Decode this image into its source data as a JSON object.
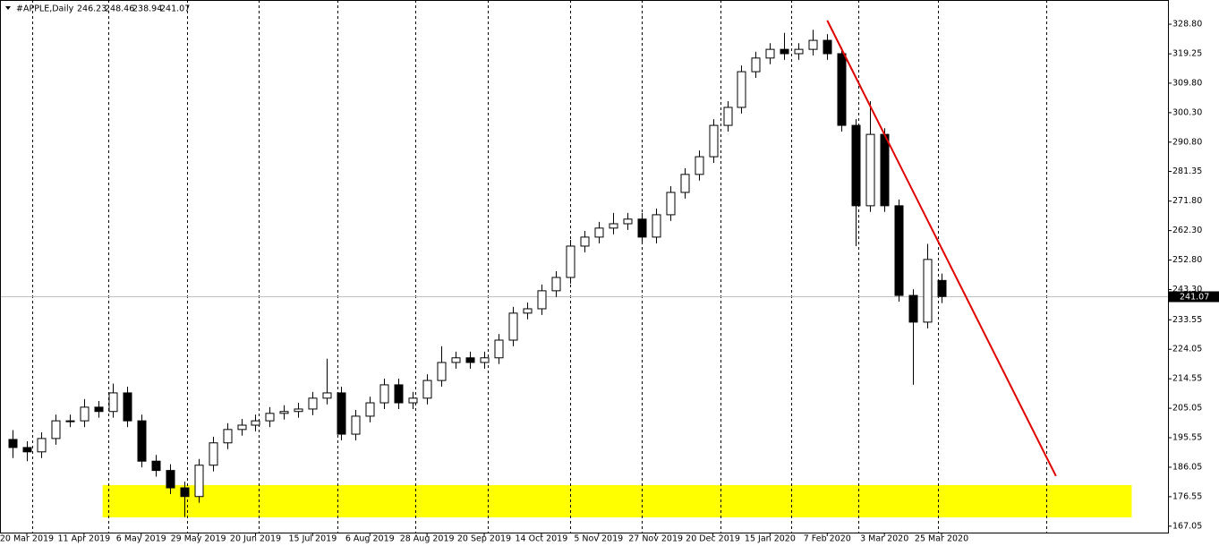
{
  "chart_data": {
    "type": "candlestick",
    "symbol": "#APPLE,Daily",
    "last_bar": {
      "open": 246.23,
      "high": 248.46,
      "low": 238.94,
      "close": 241.07
    },
    "categories": [
      null,
      "20 Mar 2019",
      null,
      null,
      null,
      "11 Apr 2019",
      null,
      null,
      null,
      "6 May 2019",
      null,
      null,
      null,
      "29 May 2019",
      null,
      null,
      null,
      "20 Jun 2019",
      null,
      null,
      null,
      "15 Jul 2019",
      null,
      null,
      null,
      "6 Aug 2019",
      null,
      null,
      null,
      "28 Aug 2019",
      null,
      null,
      null,
      "20 Sep 2019",
      null,
      null,
      null,
      "14 Oct 2019",
      null,
      null,
      null,
      "5 Nov 2019",
      null,
      null,
      null,
      "27 Nov 2019",
      null,
      null,
      null,
      "20 Dec 2019",
      null,
      null,
      null,
      "15 Jan 2020",
      null,
      null,
      null,
      "7 Feb 2020",
      null,
      null,
      null,
      "3 Mar 2020",
      null,
      null,
      null,
      "25 Mar 2020"
    ],
    "open": [
      195,
      192.4,
      191,
      195.3,
      201,
      201,
      205.4,
      204,
      210,
      201,
      188,
      185,
      179.4,
      176.6,
      186.7,
      193.9,
      198.2,
      199.6,
      201,
      203.4,
      204,
      204.8,
      208.3,
      210,
      196.7,
      202.5,
      206.8,
      212.6,
      206.8,
      208.3,
      214,
      219.8,
      221.3,
      219.8,
      221.3,
      227,
      235.7,
      237.1,
      242.9,
      247.2,
      257.3,
      260.2,
      263.1,
      264.5,
      266,
      260.2,
      267.4,
      274.6,
      280.4,
      286.1,
      296.2,
      302,
      313.5,
      317.9,
      320.7,
      319.3,
      320.7,
      323.6,
      319.3,
      296.2,
      270.3,
      293.3,
      270.3,
      241.4,
      232.8,
      246.23
    ],
    "high": [
      198,
      194.4,
      197.3,
      203,
      203,
      208,
      207.4,
      213,
      212,
      203,
      190,
      187,
      181.4,
      188.7,
      195.9,
      200.2,
      201.6,
      203,
      205.4,
      206,
      206.8,
      210.3,
      221,
      212,
      204.5,
      208.8,
      214.6,
      214.6,
      210.3,
      216,
      225,
      223.3,
      223.3,
      223.3,
      229,
      237.7,
      239.1,
      244.9,
      249.2,
      259.3,
      262.2,
      265.1,
      268,
      268,
      268,
      269.4,
      276.6,
      282.4,
      288.1,
      298.2,
      304,
      315.5,
      319.9,
      322.7,
      326,
      322.7,
      327,
      325.6,
      321.3,
      298.2,
      304,
      295.3,
      272.3,
      243.4,
      258,
      248.46
    ],
    "low": [
      189,
      188,
      189,
      193.3,
      199,
      199,
      202,
      202,
      199,
      186,
      183,
      177.4,
      170,
      174.6,
      184.7,
      191.9,
      196.2,
      197.6,
      199,
      201.4,
      202,
      202.8,
      206.3,
      194.7,
      194.7,
      200.5,
      204.8,
      204.8,
      204.8,
      206.3,
      212,
      217.8,
      217.8,
      217.8,
      219.3,
      225,
      233.7,
      235.1,
      240.9,
      245.2,
      255.3,
      258.2,
      261.1,
      262.5,
      258.2,
      258.2,
      265.4,
      272.6,
      278.4,
      284.1,
      294.2,
      300,
      311.5,
      315.9,
      317.3,
      317.3,
      318.7,
      317.3,
      294.2,
      257.3,
      268.3,
      268.3,
      239.4,
      212.6,
      230.8,
      238.94
    ],
    "close": [
      192.4,
      191,
      195.3,
      201,
      201,
      205.4,
      204,
      210,
      201,
      188,
      185,
      179.4,
      176.6,
      186.7,
      193.9,
      198.2,
      199.6,
      201,
      203.4,
      204,
      204.8,
      208.3,
      210,
      196.7,
      202.5,
      206.8,
      212.6,
      206.8,
      208.3,
      214,
      219.8,
      221.3,
      219.8,
      221.3,
      227,
      235.7,
      237.1,
      242.9,
      247.2,
      257.3,
      260.2,
      263.1,
      264.5,
      266,
      260.2,
      267.4,
      274.6,
      280.4,
      286.1,
      296.2,
      302,
      313.5,
      317.9,
      320.7,
      319.3,
      320.7,
      323.6,
      319.3,
      296.2,
      270.3,
      293.3,
      270.3,
      241.4,
      232.8,
      253,
      241.07
    ],
    "up_color": "#ffffff",
    "down_color": "#000000",
    "outline_color": "#000000",
    "ylim": [
      164.7,
      336.6
    ],
    "yticks": [
      {
        "value": 328.8,
        "label": "328.80"
      },
      {
        "value": 319.25,
        "label": "319.25"
      },
      {
        "value": 309.8,
        "label": "309.80"
      },
      {
        "value": 300.3,
        "label": "300.30"
      },
      {
        "value": 290.8,
        "label": "290.80"
      },
      {
        "value": 281.35,
        "label": "281.35"
      },
      {
        "value": 271.8,
        "label": "271.80"
      },
      {
        "value": 262.3,
        "label": "262.30"
      },
      {
        "value": 252.8,
        "label": "252.80"
      },
      {
        "value": 243.3,
        "label": "243.30"
      },
      {
        "value": 233.55,
        "label": "233.55"
      },
      {
        "value": 224.05,
        "label": "224.05"
      },
      {
        "value": 214.55,
        "label": "214.55"
      },
      {
        "value": 205.05,
        "label": "205.05"
      },
      {
        "value": 195.55,
        "label": "195.55"
      },
      {
        "value": 186.05,
        "label": "186.05"
      },
      {
        "value": 176.55,
        "label": "176.55"
      },
      {
        "value": 167.05,
        "label": "167.05"
      }
    ],
    "period_separators": [
      1.38,
      6.7,
      12.2,
      17.2,
      22.7,
      28.2,
      33.25,
      39.0,
      44.0,
      49.5,
      54.5,
      59.2,
      64.75,
      72.3
    ],
    "trendline": {
      "x": [
        57.0,
        73.0
      ],
      "y": [
        330.0,
        183.2
      ],
      "color": "#e00000"
    },
    "zone": {
      "x": [
        6.3,
        78.3
      ],
      "y": [
        169.9,
        180.3
      ],
      "color": "#ffff00"
    }
  }
}
